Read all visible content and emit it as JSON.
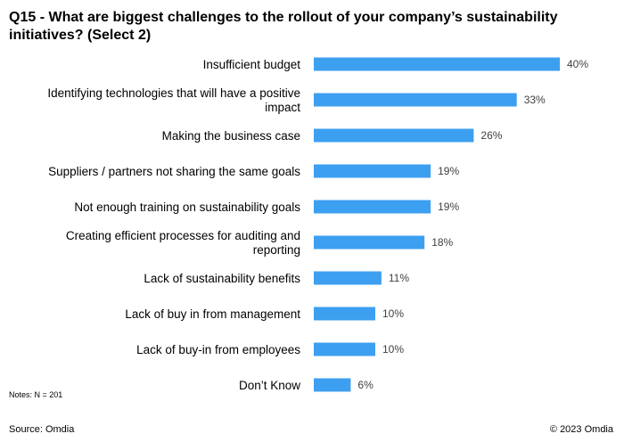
{
  "chart_data": {
    "type": "bar",
    "orientation": "horizontal",
    "title": "Q15 - What are biggest challenges to the rollout of your company’s sustainability initiatives? (Select 2)",
    "categories": [
      "Insufficient budget",
      "Identifying technologies that will have a positive impact",
      "Making the business case",
      "Suppliers / partners not sharing the same goals",
      "Not enough training on sustainability goals",
      "Creating efficient processes for auditing and reporting",
      "Lack of sustainability benefits",
      "Lack of buy in from management",
      "Lack of buy-in from employees",
      "Don’t Know"
    ],
    "category_lines": [
      [
        "Insufficient budget"
      ],
      [
        "Identifying technologies that will have a positive",
        "impact"
      ],
      [
        "Making the business case"
      ],
      [
        "Suppliers / partners not sharing the same goals"
      ],
      [
        "Not enough training on sustainability goals"
      ],
      [
        "Creating efficient processes for auditing and",
        "reporting"
      ],
      [
        "Lack of sustainability benefits"
      ],
      [
        "Lack of buy in from management"
      ],
      [
        "Lack of buy-in from employees"
      ],
      [
        "Don’t Know"
      ]
    ],
    "values": [
      40,
      33,
      26,
      19,
      19,
      18,
      11,
      10,
      10,
      6
    ],
    "value_labels": [
      "40%",
      "33%",
      "26%",
      "19%",
      "19%",
      "18%",
      "11%",
      "10%",
      "10%",
      "6%"
    ],
    "unit": "%",
    "xlim": [
      0,
      40
    ],
    "grid": false,
    "bar_color": "#3d9ff0"
  },
  "footer": {
    "notes": "Notes: N = 201",
    "source": "Source: Omdia",
    "copyright": "© 2023 Omdia"
  }
}
